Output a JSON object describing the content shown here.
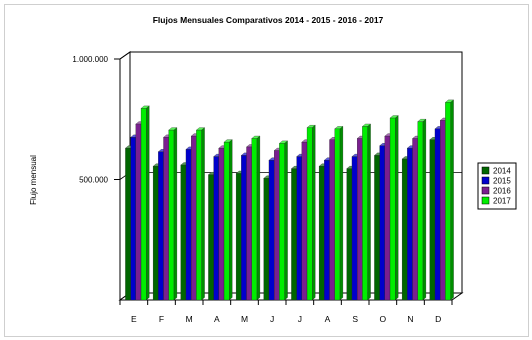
{
  "chart_data": {
    "type": "bar",
    "style": "3d-clustered-column",
    "title": "Flujos Mensuales Comparativos 2014 - 2015 - 2016 - 2017",
    "xlabel": "",
    "ylabel": "Flujo mensual",
    "categories": [
      "E",
      "F",
      "M",
      "A",
      "M",
      "J",
      "J",
      "A",
      "S",
      "O",
      "N",
      "D"
    ],
    "y_ticks": [
      {
        "value": 500000,
        "label": "500.000"
      },
      {
        "value": 1000000,
        "label": "1.000.000"
      }
    ],
    "ylim": [
      0,
      1000000
    ],
    "grid": true,
    "legend_position": "right",
    "series": [
      {
        "name": "2014",
        "color": "#006600",
        "values": [
          630000,
          555000,
          560000,
          520000,
          525000,
          505000,
          545000,
          555000,
          545000,
          600000,
          585000,
          665000
        ]
      },
      {
        "name": "2015",
        "color": "#0000cc",
        "values": [
          675000,
          615000,
          625000,
          595000,
          600000,
          580000,
          595000,
          580000,
          595000,
          640000,
          630000,
          710000
        ]
      },
      {
        "name": "2016",
        "color": "#7a1f8f",
        "values": [
          730000,
          675000,
          680000,
          630000,
          635000,
          620000,
          655000,
          665000,
          670000,
          680000,
          670000,
          745000
        ]
      },
      {
        "name": "2017",
        "color": "#00ee00",
        "values": [
          795000,
          705000,
          705000,
          655000,
          670000,
          650000,
          715000,
          710000,
          720000,
          755000,
          740000,
          820000
        ]
      }
    ]
  }
}
